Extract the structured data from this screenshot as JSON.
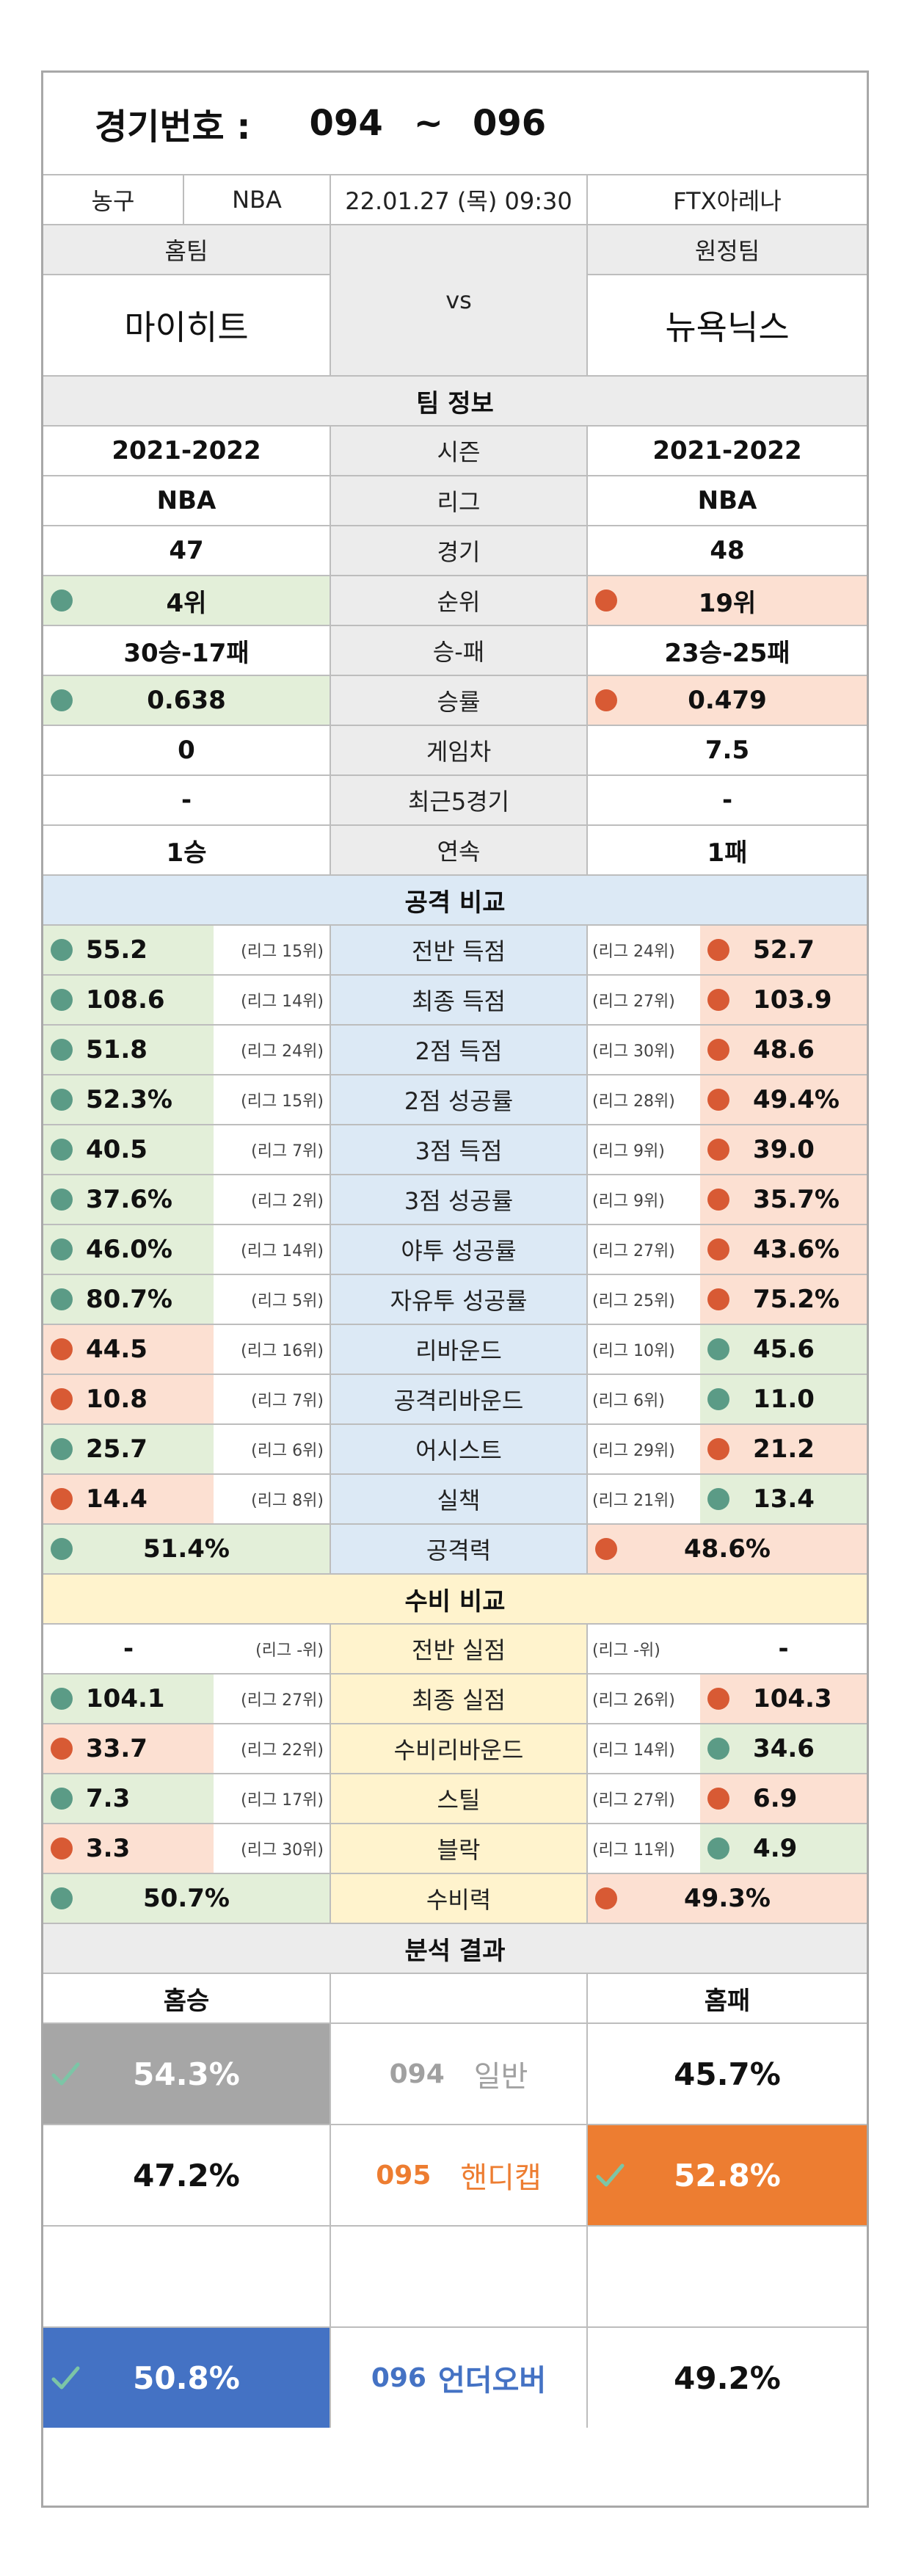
{
  "header": {
    "label": "경기번호 :",
    "from": "094",
    "tilde": "~",
    "to": "096"
  },
  "game_info": {
    "sport": "농구",
    "league": "NBA",
    "datetime": "22.01.27 (목) 09:30",
    "venue": "FTX아레나"
  },
  "teams": {
    "home_label": "홈팀",
    "away_label": "원정팀",
    "vs": "vs",
    "home_name": "마이히트",
    "away_name": "뉴욕닉스"
  },
  "team_info": {
    "title": "팀 정보",
    "rows": [
      {
        "label": "시즌",
        "home": "2021-2022",
        "away": "2021-2022"
      },
      {
        "label": "리그",
        "home": "NBA",
        "away": "NBA"
      },
      {
        "label": "경기",
        "home": "47",
        "away": "48"
      },
      {
        "label": "순위",
        "home": "4위",
        "away": "19위"
      },
      {
        "label": "승-패",
        "home": "30승-17패",
        "away": "23승-25패"
      },
      {
        "label": "승률",
        "home": "0.638",
        "away": "0.479"
      },
      {
        "label": "게임차",
        "home": "0",
        "away": "7.5"
      },
      {
        "label": "최근5경기",
        "home": "-",
        "away": "-"
      },
      {
        "label": "연속",
        "home": "1승",
        "away": "1패"
      }
    ]
  },
  "offense": {
    "title": "공격 비교",
    "rows": [
      {
        "label": "전반 득점",
        "home": "55.2",
        "home_rank": "(리그 15위)",
        "away": "52.7",
        "away_rank": "(리그 24위)"
      },
      {
        "label": "최종 득점",
        "home": "108.6",
        "home_rank": "(리그 14위)",
        "away": "103.9",
        "away_rank": "(리그 27위)"
      },
      {
        "label": "2점 득점",
        "home": "51.8",
        "home_rank": "(리그 24위)",
        "away": "48.6",
        "away_rank": "(리그 30위)"
      },
      {
        "label": "2점 성공률",
        "home": "52.3%",
        "home_rank": "(리그 15위)",
        "away": "49.4%",
        "away_rank": "(리그 28위)"
      },
      {
        "label": "3점 득점",
        "home": "40.5",
        "home_rank": "(리그 7위)",
        "away": "39.0",
        "away_rank": "(리그 9위)"
      },
      {
        "label": "3점 성공률",
        "home": "37.6%",
        "home_rank": "(리그 2위)",
        "away": "35.7%",
        "away_rank": "(리그 9위)"
      },
      {
        "label": "야투 성공률",
        "home": "46.0%",
        "home_rank": "(리그 14위)",
        "away": "43.6%",
        "away_rank": "(리그 27위)"
      },
      {
        "label": "자유투 성공률",
        "home": "80.7%",
        "home_rank": "(리그 5위)",
        "away": "75.2%",
        "away_rank": "(리그 25위)"
      },
      {
        "label": "리바운드",
        "home": "44.5",
        "home_rank": "(리그 16위)",
        "away": "45.6",
        "away_rank": "(리그 10위)"
      },
      {
        "label": "공격리바운드",
        "home": "10.8",
        "home_rank": "(리그 7위)",
        "away": "11.0",
        "away_rank": "(리그 6위)"
      },
      {
        "label": "어시스트",
        "home": "25.7",
        "home_rank": "(리그 6위)",
        "away": "21.2",
        "away_rank": "(리그 29위)"
      },
      {
        "label": "실책",
        "home": "14.4",
        "home_rank": "(리그 8위)",
        "away": "13.4",
        "away_rank": "(리그 21위)"
      }
    ],
    "power_label": "공격력",
    "power_home": "51.4%",
    "power_away": "48.6%"
  },
  "defense": {
    "title": "수비 비교",
    "rows": [
      {
        "label": "전반 실점",
        "home": "-",
        "home_rank": "(리그 -위)",
        "away": "-",
        "away_rank": "(리그 -위)"
      },
      {
        "label": "최종 실점",
        "home": "104.1",
        "home_rank": "(리그 27위)",
        "away": "104.3",
        "away_rank": "(리그 26위)"
      },
      {
        "label": "수비리바운드",
        "home": "33.7",
        "home_rank": "(리그 22위)",
        "away": "34.6",
        "away_rank": "(리그 14위)"
      },
      {
        "label": "스틸",
        "home": "7.3",
        "home_rank": "(리그 17위)",
        "away": "6.9",
        "away_rank": "(리그 27위)"
      },
      {
        "label": "블락",
        "home": "3.3",
        "home_rank": "(리그 30위)",
        "away": "4.9",
        "away_rank": "(리그 11위)"
      }
    ],
    "power_label": "수비력",
    "power_home": "50.7%",
    "power_away": "49.3%"
  },
  "analysis": {
    "title": "분석 결과",
    "left_header": "홈승",
    "right_header": "홈패",
    "rows": [
      {
        "number": "094",
        "type": "일반",
        "left": "54.3%",
        "right": "45.7%"
      },
      {
        "number": "095",
        "type": "핸디캡",
        "left": "47.2%",
        "right": "52.8%"
      },
      {
        "number": "096",
        "type": "언더오버",
        "left": "50.8%",
        "right": "49.2%"
      }
    ]
  },
  "colors": {
    "good_dot": "#5b9b86",
    "bad_dot": "#d85a34",
    "good_bg": "#e3efd9",
    "bad_bg": "#fce0d2",
    "offense_bg": "#dce9f5",
    "defense_bg": "#fff3cd",
    "general_pick_bg": "#a6a6a6",
    "handicap_color": "#ed7d31",
    "underover_color": "#4472c4"
  },
  "icons": {
    "good": "green-circle-icon",
    "bad": "red-circle-icon",
    "pick": "check-icon"
  }
}
